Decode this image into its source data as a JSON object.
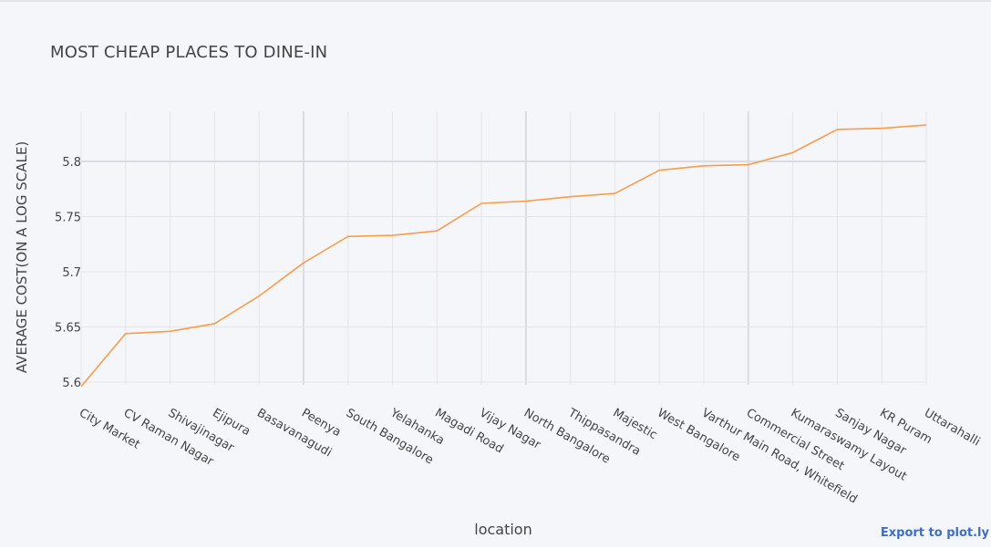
{
  "export_label": "Export to plot.ly",
  "colors": {
    "line": "#f89d4a",
    "grid": "#e3e5ea",
    "grid_major": "#d9dce2",
    "background": "#f5f6f9"
  },
  "chart_data": {
    "type": "line",
    "title": "MOST CHEAP PLACES TO DINE-IN",
    "xlabel": "location",
    "ylabel": "AVERAGE COST(ON A LOG SCALE)",
    "ylim": [
      5.59,
      5.84
    ],
    "yticks": [
      "5.6",
      "5.65",
      "5.7",
      "5.75",
      "5.8"
    ],
    "grid": true,
    "categories": [
      "City Market",
      "CV Raman Nagar",
      "Shivajinagar",
      "Ejipura",
      "Basavanagudi",
      "Peenya",
      "South Bangalore",
      "Yelahanka",
      "Magadi Road",
      "Vijay Nagar",
      "North Bangalore",
      "Thippasandra",
      "Majestic",
      "West Bangalore",
      "Varthur Main Road, Whitefield",
      "Commercial Street",
      "Kumaraswamy Layout",
      "Sanjay Nagar",
      "KR Puram",
      "Uttarahalli"
    ],
    "series": [
      {
        "values": [
          5.596,
          5.644,
          5.646,
          5.653,
          5.678,
          5.708,
          5.732,
          5.733,
          5.737,
          5.762,
          5.764,
          5.768,
          5.771,
          5.792,
          5.796,
          5.797,
          5.808,
          5.829,
          5.83,
          5.833
        ]
      }
    ]
  }
}
